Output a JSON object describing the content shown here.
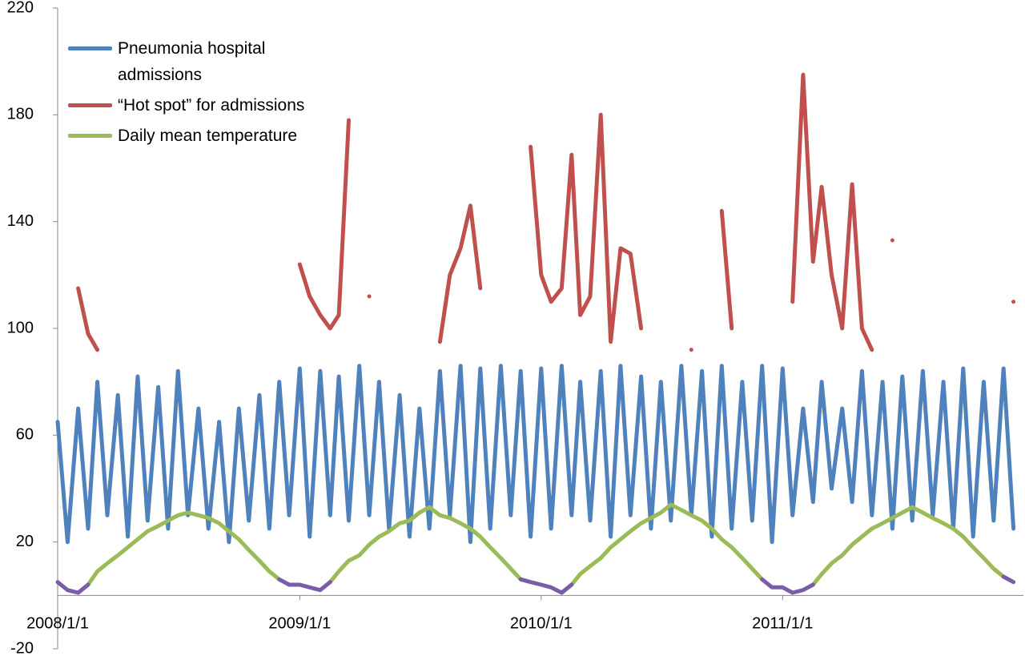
{
  "chart_data": {
    "type": "line",
    "x": [
      "2008/1/1",
      "2008/1/16",
      "2008/2/1",
      "2008/2/16",
      "2008/3/1",
      "2008/3/16",
      "2008/4/1",
      "2008/4/16",
      "2008/5/1",
      "2008/5/16",
      "2008/6/1",
      "2008/6/16",
      "2008/7/1",
      "2008/7/16",
      "2008/8/1",
      "2008/8/16",
      "2008/9/1",
      "2008/9/16",
      "2008/10/1",
      "2008/10/16",
      "2008/11/1",
      "2008/11/16",
      "2008/12/1",
      "2008/12/16",
      "2009/1/1",
      "2009/1/16",
      "2009/2/1",
      "2009/2/16",
      "2009/3/1",
      "2009/3/16",
      "2009/4/1",
      "2009/4/16",
      "2009/5/1",
      "2009/5/16",
      "2009/6/1",
      "2009/6/16",
      "2009/7/1",
      "2009/7/16",
      "2009/8/1",
      "2009/8/16",
      "2009/9/1",
      "2009/9/16",
      "2009/10/1",
      "2009/10/16",
      "2009/11/1",
      "2009/11/16",
      "2009/12/1",
      "2009/12/16",
      "2010/1/1",
      "2010/1/16",
      "2010/2/1",
      "2010/2/16",
      "2010/3/1",
      "2010/3/16",
      "2010/4/1",
      "2010/4/16",
      "2010/5/1",
      "2010/5/16",
      "2010/6/1",
      "2010/6/16",
      "2010/7/1",
      "2010/7/16",
      "2010/8/1",
      "2010/8/16",
      "2010/9/1",
      "2010/9/16",
      "2010/10/1",
      "2010/10/16",
      "2010/11/1",
      "2010/11/16",
      "2010/12/1",
      "2010/12/16",
      "2011/1/1",
      "2011/1/16",
      "2011/2/1",
      "2011/2/16",
      "2011/3/1",
      "2011/3/16",
      "2011/4/1",
      "2011/4/16",
      "2011/5/1",
      "2011/5/16",
      "2011/6/1",
      "2011/6/16",
      "2011/7/1",
      "2011/7/16",
      "2011/8/1",
      "2011/8/16",
      "2011/9/1",
      "2011/9/16",
      "2011/10/1",
      "2011/10/16",
      "2011/11/1",
      "2011/11/16",
      "2011/12/1",
      "2011/12/16"
    ],
    "series": [
      {
        "name": "Pneumonia hospital admissions",
        "color": "#4f81bd",
        "values": [
          65,
          20,
          70,
          25,
          80,
          30,
          75,
          22,
          82,
          28,
          78,
          25,
          84,
          30,
          70,
          25,
          65,
          20,
          70,
          28,
          75,
          25,
          80,
          30,
          85,
          22,
          84,
          30,
          82,
          28,
          86,
          30,
          80,
          25,
          75,
          22,
          70,
          25,
          84,
          30,
          86,
          20,
          85,
          25,
          86,
          30,
          84,
          22,
          85,
          25,
          86,
          30,
          80,
          28,
          84,
          22,
          86,
          30,
          82,
          25,
          80,
          28,
          86,
          30,
          84,
          22,
          86,
          25,
          80,
          28,
          86,
          20,
          85,
          30,
          70,
          35,
          80,
          40,
          70,
          35,
          84,
          30,
          80,
          25,
          82,
          28,
          84,
          30,
          80,
          25,
          85,
          22,
          80,
          28,
          85,
          25
        ]
      },
      {
        "name": "“Hot spot” for admissions",
        "color": "#c0504d",
        "values": [
          null,
          null,
          115,
          98,
          92,
          null,
          null,
          null,
          null,
          null,
          null,
          null,
          null,
          null,
          null,
          null,
          null,
          null,
          null,
          null,
          null,
          null,
          null,
          null,
          124,
          112,
          105,
          100,
          105,
          178,
          null,
          112,
          null,
          null,
          null,
          null,
          null,
          null,
          95,
          120,
          130,
          146,
          115,
          null,
          null,
          null,
          null,
          168,
          120,
          110,
          115,
          165,
          105,
          112,
          180,
          95,
          130,
          128,
          100,
          null,
          null,
          null,
          null,
          92,
          null,
          null,
          144,
          100,
          null,
          null,
          null,
          null,
          null,
          110,
          195,
          125,
          153,
          120,
          100,
          154,
          100,
          92,
          null,
          133,
          null,
          null,
          null,
          null,
          null,
          null,
          null,
          null,
          null,
          null,
          null,
          110
        ]
      },
      {
        "name": "Daily mean temperature",
        "color": "#9bbb59",
        "values": [
          null,
          null,
          null,
          4,
          9,
          12,
          15,
          18,
          21,
          24,
          26,
          28,
          30,
          31,
          30,
          29,
          27,
          24,
          21,
          17,
          13,
          9,
          6,
          null,
          null,
          null,
          null,
          5,
          9,
          13,
          15,
          19,
          22,
          24,
          27,
          28,
          31,
          33,
          30,
          29,
          27,
          25,
          22,
          18,
          14,
          10,
          6,
          null,
          null,
          null,
          null,
          4,
          8,
          11,
          14,
          18,
          21,
          24,
          27,
          29,
          31,
          34,
          32,
          30,
          28,
          25,
          21,
          18,
          14,
          10,
          6,
          null,
          null,
          null,
          null,
          4,
          8,
          12,
          15,
          19,
          22,
          25,
          27,
          29,
          31,
          33,
          31,
          29,
          27,
          25,
          22,
          18,
          14,
          10,
          7,
          null
        ]
      },
      {
        "color": "#7b5ca8",
        "values": [
          5,
          2,
          1,
          4,
          null,
          null,
          null,
          null,
          null,
          null,
          null,
          null,
          null,
          null,
          null,
          null,
          null,
          null,
          null,
          null,
          null,
          null,
          6,
          4,
          4,
          3,
          2,
          5,
          null,
          null,
          null,
          null,
          null,
          null,
          null,
          null,
          null,
          null,
          null,
          null,
          null,
          null,
          null,
          null,
          null,
          null,
          6,
          5,
          4,
          3,
          1,
          4,
          null,
          null,
          null,
          null,
          null,
          null,
          null,
          null,
          null,
          null,
          null,
          null,
          null,
          null,
          null,
          null,
          null,
          null,
          6,
          3,
          3,
          1,
          2,
          4,
          null,
          null,
          null,
          null,
          null,
          null,
          null,
          null,
          null,
          null,
          null,
          null,
          null,
          null,
          null,
          null,
          null,
          null,
          7,
          5
        ]
      }
    ],
    "xlim": [
      "2008/1/1",
      "2011/12/31"
    ],
    "xticks": [
      "2008/1/1",
      "2009/1/1",
      "2010/1/1",
      "2011/1/1"
    ],
    "ylim": [
      -20,
      220
    ],
    "yticks": [
      -20,
      20,
      60,
      100,
      140,
      180,
      220
    ],
    "grid": false,
    "legend": "top-left"
  }
}
